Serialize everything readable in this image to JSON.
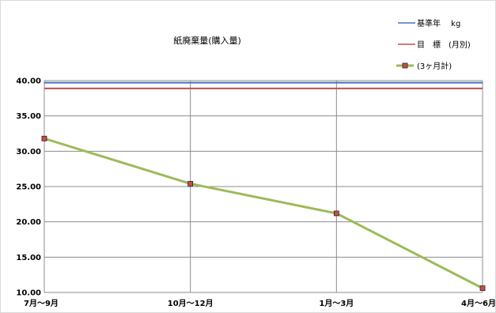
{
  "chart_data": {
    "type": "line",
    "title": "紙廃棄量(購入量)",
    "categories": [
      "7月～9月",
      "10月～12月",
      "1月～3月",
      "4月～6月"
    ],
    "ylim": [
      10,
      40
    ],
    "yticks": [
      "10.00",
      "15.00",
      "20.00",
      "25.00",
      "30.00",
      "35.00",
      "40.00"
    ],
    "grid": true,
    "legend_position": "top-right",
    "series": [
      {
        "name": "基準年　 kg",
        "type": "reference",
        "value": 39.7,
        "color": "#4472c4"
      },
      {
        "name": "目　標　(月別)",
        "type": "reference",
        "value": 38.9,
        "color": "#c0504d"
      },
      {
        "name": "(3ヶ月計)",
        "type": "line",
        "values": [
          31.8,
          25.4,
          21.2,
          10.6
        ],
        "color": "#9bbb59",
        "marker_color": "#c0504d"
      }
    ]
  }
}
